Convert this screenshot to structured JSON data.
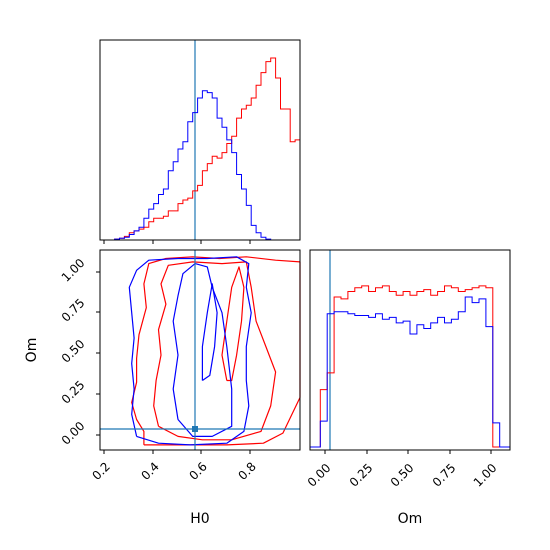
{
  "chart_data": {
    "type": "corner",
    "parameters": [
      "H0",
      "Om"
    ],
    "truths": {
      "H0": 0.57,
      "Om": 0.04
    },
    "series_colors": {
      "red": "#ff0000",
      "blue": "#0000ff",
      "truth": "#1f77b4"
    },
    "panels": [
      {
        "id": "H0-marginal",
        "type": "histogram",
        "xlim": [
          0.18,
          1.0
        ],
        "bin_edges": [
          0.18,
          0.2,
          0.22,
          0.24,
          0.26,
          0.28,
          0.3,
          0.32,
          0.34,
          0.36,
          0.38,
          0.4,
          0.42,
          0.44,
          0.46,
          0.48,
          0.5,
          0.52,
          0.54,
          0.56,
          0.58,
          0.6,
          0.62,
          0.64,
          0.66,
          0.68,
          0.7,
          0.72,
          0.74,
          0.76,
          0.78,
          0.8,
          0.82,
          0.84,
          0.86,
          0.88,
          0.9,
          0.92,
          0.94,
          0.96,
          0.98,
          1.0
        ],
        "series": [
          {
            "color": "red",
            "counts": [
              0,
              0,
              0,
              0.5,
              1,
              2,
              4,
              5,
              6,
              7,
              10,
              12,
              12,
              13,
              16,
              16,
              20,
              22,
              23,
              27,
              30,
              38,
              42,
              46,
              45,
              48,
              53,
              57,
              67,
              72,
              74,
              78,
              85,
              92,
              98,
              100,
              89,
              72,
              72,
              54,
              55
            ]
          },
          {
            "color": "blue",
            "counts": [
              0,
              0,
              0,
              0.5,
              1,
              1.5,
              3,
              5,
              7,
              12,
              17,
              20,
              25,
              28,
              38,
              43,
              50,
              54,
              65,
              70,
              78,
              82,
              81,
              78,
              67,
              62,
              55,
              48,
              36,
              28,
              19,
              8,
              4,
              1.5,
              0.5,
              0,
              0,
              0,
              0,
              0,
              0
            ]
          }
        ]
      },
      {
        "id": "Om-marginal",
        "type": "histogram",
        "xlim": [
          -0.06,
          1.1
        ],
        "xticks": [
          "0.00",
          "0.25",
          "0.50",
          "0.75",
          "1.00"
        ],
        "bin_edges": [
          -0.06,
          0.0,
          0.04,
          0.08,
          0.12,
          0.16,
          0.2,
          0.24,
          0.28,
          0.32,
          0.36,
          0.4,
          0.44,
          0.48,
          0.52,
          0.56,
          0.6,
          0.64,
          0.68,
          0.72,
          0.76,
          0.8,
          0.84,
          0.88,
          0.92,
          0.96,
          1.0,
          1.04,
          1.1
        ],
        "series": [
          {
            "color": "red",
            "counts": [
              0,
              0.31,
              0.4,
              0.81,
              0.8,
              0.84,
              0.86,
              0.87,
              0.84,
              0.86,
              0.87,
              0.84,
              0.82,
              0.84,
              0.82,
              0.84,
              0.85,
              0.82,
              0.84,
              0.87,
              0.86,
              0.84,
              0.85,
              0.86,
              0.87,
              0.86,
              0.0,
              0.0
            ]
          },
          {
            "color": "blue",
            "counts": [
              0,
              0.14,
              0.72,
              0.73,
              0.73,
              0.72,
              0.71,
              0.71,
              0.7,
              0.72,
              0.69,
              0.7,
              0.67,
              0.68,
              0.61,
              0.66,
              0.64,
              0.67,
              0.7,
              0.67,
              0.69,
              0.73,
              0.81,
              0.78,
              0.8,
              0.65,
              0.13,
              0.0
            ]
          }
        ]
      },
      {
        "id": "H0-Om-joint",
        "type": "contour",
        "xlim": [
          0.18,
          1.0
        ],
        "ylim": [
          -0.06,
          1.12
        ],
        "xticks": [
          "0.2",
          "0.4",
          "0.6",
          "0.8"
        ],
        "yticks": [
          "0.00",
          "0.25",
          "0.50",
          "0.75",
          "1.00"
        ],
        "xlabel": "H0",
        "ylabel": "Om",
        "contours": [
          {
            "color": "red",
            "points": [
              [
                0.36,
                -0.03
              ],
              [
                0.36,
                0.05
              ],
              [
                0.33,
                0.12
              ],
              [
                0.31,
                0.22
              ],
              [
                0.33,
                0.34
              ],
              [
                0.33,
                0.48
              ],
              [
                0.34,
                0.62
              ],
              [
                0.37,
                0.78
              ],
              [
                0.36,
                0.92
              ],
              [
                0.38,
                1.04
              ],
              [
                0.45,
                1.07
              ],
              [
                0.56,
                1.08
              ],
              [
                0.67,
                1.07
              ],
              [
                0.78,
                1.08
              ],
              [
                0.9,
                1.06
              ],
              [
                1.0,
                1.05
              ],
              [
                1.0,
                0.25
              ],
              [
                0.93,
                0.04
              ],
              [
                0.85,
                -0.02
              ],
              [
                0.7,
                -0.03
              ],
              [
                0.55,
                -0.03
              ],
              [
                0.45,
                -0.03
              ],
              [
                0.36,
                -0.03
              ]
            ]
          },
          {
            "color": "red",
            "points": [
              [
                0.42,
                0.08
              ],
              [
                0.4,
                0.2
              ],
              [
                0.41,
                0.35
              ],
              [
                0.43,
                0.5
              ],
              [
                0.42,
                0.65
              ],
              [
                0.45,
                0.8
              ],
              [
                0.43,
                0.92
              ],
              [
                0.46,
                1.03
              ],
              [
                0.56,
                1.05
              ],
              [
                0.68,
                1.04
              ],
              [
                0.78,
                1.05
              ],
              [
                0.8,
                0.9
              ],
              [
                0.82,
                0.7
              ],
              [
                0.86,
                0.55
              ],
              [
                0.9,
                0.4
              ],
              [
                0.88,
                0.2
              ],
              [
                0.84,
                0.05
              ],
              [
                0.72,
                0.0
              ],
              [
                0.6,
                0.0
              ],
              [
                0.5,
                0.02
              ],
              [
                0.42,
                0.08
              ]
            ]
          },
          {
            "color": "red",
            "points": [
              [
                0.7,
                0.35
              ],
              [
                0.68,
                0.5
              ],
              [
                0.7,
                0.7
              ],
              [
                0.72,
                0.9
              ],
              [
                0.75,
                1.02
              ],
              [
                0.77,
                0.9
              ],
              [
                0.76,
                0.7
              ],
              [
                0.74,
                0.5
              ],
              [
                0.72,
                0.35
              ],
              [
                0.7,
                0.35
              ]
            ]
          },
          {
            "color": "blue",
            "points": [
              [
                0.33,
                0.02
              ],
              [
                0.31,
                0.15
              ],
              [
                0.32,
                0.3
              ],
              [
                0.31,
                0.45
              ],
              [
                0.32,
                0.6
              ],
              [
                0.31,
                0.75
              ],
              [
                0.3,
                0.9
              ],
              [
                0.33,
                1.0
              ],
              [
                0.38,
                1.06
              ],
              [
                0.5,
                1.07
              ],
              [
                0.62,
                1.07
              ],
              [
                0.74,
                1.08
              ],
              [
                0.79,
                1.04
              ],
              [
                0.78,
                0.9
              ],
              [
                0.8,
                0.75
              ],
              [
                0.78,
                0.55
              ],
              [
                0.78,
                0.35
              ],
              [
                0.79,
                0.2
              ],
              [
                0.77,
                0.05
              ],
              [
                0.7,
                -0.02
              ],
              [
                0.55,
                -0.03
              ],
              [
                0.42,
                -0.02
              ],
              [
                0.33,
                0.02
              ]
            ]
          },
          {
            "color": "blue",
            "points": [
              [
                0.5,
                0.12
              ],
              [
                0.48,
                0.3
              ],
              [
                0.5,
                0.5
              ],
              [
                0.48,
                0.7
              ],
              [
                0.5,
                0.85
              ],
              [
                0.52,
                0.98
              ],
              [
                0.57,
                1.04
              ],
              [
                0.62,
                1.02
              ],
              [
                0.64,
                0.9
              ],
              [
                0.68,
                0.75
              ],
              [
                0.7,
                0.55
              ],
              [
                0.72,
                0.3
              ],
              [
                0.72,
                0.08
              ],
              [
                0.64,
                0.02
              ],
              [
                0.56,
                0.02
              ],
              [
                0.5,
                0.12
              ]
            ]
          },
          {
            "color": "blue",
            "points": [
              [
                0.6,
                0.35
              ],
              [
                0.6,
                0.55
              ],
              [
                0.62,
                0.75
              ],
              [
                0.64,
                0.92
              ],
              [
                0.66,
                0.75
              ],
              [
                0.65,
                0.55
              ],
              [
                0.63,
                0.38
              ],
              [
                0.6,
                0.35
              ]
            ]
          }
        ]
      }
    ]
  }
}
